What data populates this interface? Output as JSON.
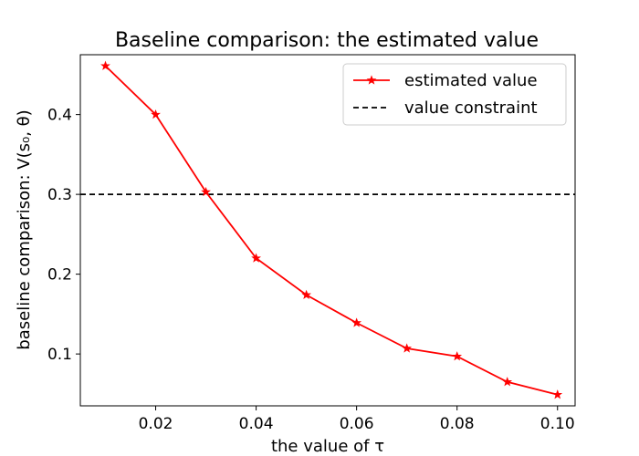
{
  "chart_data": {
    "type": "line",
    "title": "Baseline comparison: the estimated value",
    "xlabel": "the value of τ",
    "ylabel": "baseline comparison: V(s₀, θ)",
    "xlim": [
      0.005,
      0.1035
    ],
    "ylim": [
      0.035,
      0.475
    ],
    "x_ticks": [
      0.02,
      0.04,
      0.06,
      0.08,
      0.1
    ],
    "x_tick_labels": [
      "0.02",
      "0.04",
      "0.06",
      "0.08",
      "0.10"
    ],
    "y_ticks": [
      0.1,
      0.2,
      0.3,
      0.4
    ],
    "y_tick_labels": [
      "0.1",
      "0.2",
      "0.3",
      "0.4"
    ],
    "series": [
      {
        "name": "estimated value",
        "color": "#ff0000",
        "marker": "star",
        "line_style": "solid",
        "x": [
          0.01,
          0.02,
          0.03,
          0.04,
          0.05,
          0.06,
          0.07,
          0.08,
          0.09,
          0.1
        ],
        "values": [
          0.461,
          0.4,
          0.303,
          0.22,
          0.174,
          0.139,
          0.107,
          0.097,
          0.065,
          0.049
        ]
      }
    ],
    "reference_lines": [
      {
        "name": "value constraint",
        "orientation": "horizontal",
        "y": 0.3,
        "color": "#000000",
        "line_style": "dashed"
      }
    ],
    "legend": {
      "position": "top-right",
      "entries": [
        "estimated value",
        "value constraint"
      ]
    },
    "grid": false
  }
}
